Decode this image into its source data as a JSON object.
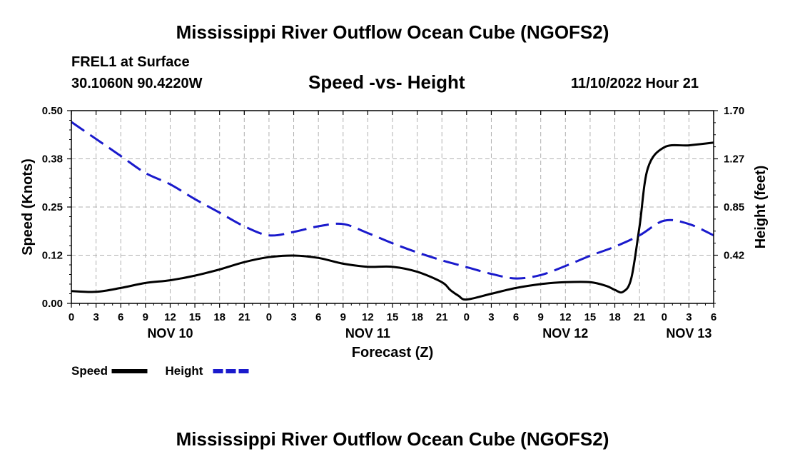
{
  "title": "Mississippi River Outflow Ocean Cube (NGOFS2)",
  "title_repeat": "Mississippi River Outflow Ocean Cube (NGOFS2)",
  "station_label": "FREL1 at Surface",
  "coords": "30.1060N  90.4220W",
  "datetime": "11/10/2022 Hour 21",
  "colors": {
    "speed": "#000000",
    "height": "#1a1acc",
    "grid": "#b0b0b0"
  },
  "chart_data": {
    "type": "line",
    "title": "Speed -vs- Height",
    "xlabel": "Forecast (Z)",
    "ylabel_left": "Speed (Knots)",
    "ylabel_right": "Height (feet)",
    "x_unit": "forecast hours since NOV 10 00Z",
    "xlim": [
      0,
      78
    ],
    "ylim_left": [
      0,
      0.5
    ],
    "ylim_right": [
      0,
      1.7
    ],
    "x_ticks": [
      0,
      3,
      6,
      9,
      12,
      15,
      18,
      21,
      24,
      27,
      30,
      33,
      36,
      39,
      42,
      45,
      48,
      51,
      54,
      57,
      60,
      63,
      66,
      69,
      72,
      75,
      78
    ],
    "x_tick_labels": [
      "0",
      "3",
      "6",
      "9",
      "12",
      "15",
      "18",
      "21",
      "0",
      "3",
      "6",
      "9",
      "12",
      "15",
      "18",
      "21",
      "0",
      "3",
      "6",
      "9",
      "12",
      "15",
      "18",
      "21",
      "0",
      "3",
      "6"
    ],
    "day_labels": [
      {
        "x": 12,
        "label": "NOV 10"
      },
      {
        "x": 36,
        "label": "NOV 11"
      },
      {
        "x": 60,
        "label": "NOV 12"
      },
      {
        "x": 75,
        "label": "NOV 13"
      }
    ],
    "y_left_ticks": [
      0,
      0.125,
      0.25,
      0.375,
      0.5
    ],
    "y_left_tick_labels": [
      "0.00",
      "0.12",
      "0.25",
      "0.38",
      "0.50"
    ],
    "y_right_ticks": [
      0.425,
      0.85,
      1.275,
      1.7
    ],
    "y_right_tick_labels": [
      "0.42",
      "0.85",
      "1.27",
      "1.70"
    ],
    "grid": true,
    "legend": [
      {
        "name": "Speed",
        "style": "solid"
      },
      {
        "name": "Height",
        "style": "dashed"
      }
    ],
    "series": [
      {
        "name": "Speed",
        "axis": "left",
        "style": "solid",
        "x": [
          0,
          3,
          6,
          9,
          12,
          15,
          18,
          21,
          24,
          27,
          30,
          33,
          36,
          39,
          42,
          45,
          46,
          47,
          48,
          51,
          54,
          57,
          60,
          63,
          65,
          66,
          67,
          68,
          69,
          70,
          72,
          75,
          78
        ],
        "y": [
          0.032,
          0.03,
          0.04,
          0.053,
          0.06,
          0.072,
          0.088,
          0.107,
          0.12,
          0.124,
          0.118,
          0.103,
          0.095,
          0.095,
          0.082,
          0.055,
          0.035,
          0.02,
          0.01,
          0.025,
          0.04,
          0.05,
          0.055,
          0.055,
          0.045,
          0.035,
          0.03,
          0.065,
          0.2,
          0.35,
          0.405,
          0.41,
          0.417
        ]
      },
      {
        "name": "Height",
        "axis": "right",
        "style": "dashed",
        "x": [
          0,
          3,
          6,
          9,
          12,
          15,
          18,
          21,
          24,
          27,
          30,
          33,
          36,
          39,
          42,
          45,
          48,
          51,
          54,
          57,
          60,
          63,
          66,
          69,
          72,
          75,
          78
        ],
        "y": [
          1.6,
          1.45,
          1.3,
          1.15,
          1.05,
          0.92,
          0.8,
          0.68,
          0.6,
          0.63,
          0.68,
          0.7,
          0.62,
          0.53,
          0.45,
          0.38,
          0.32,
          0.26,
          0.22,
          0.25,
          0.33,
          0.42,
          0.5,
          0.6,
          0.73,
          0.7,
          0.6
        ]
      }
    ]
  }
}
